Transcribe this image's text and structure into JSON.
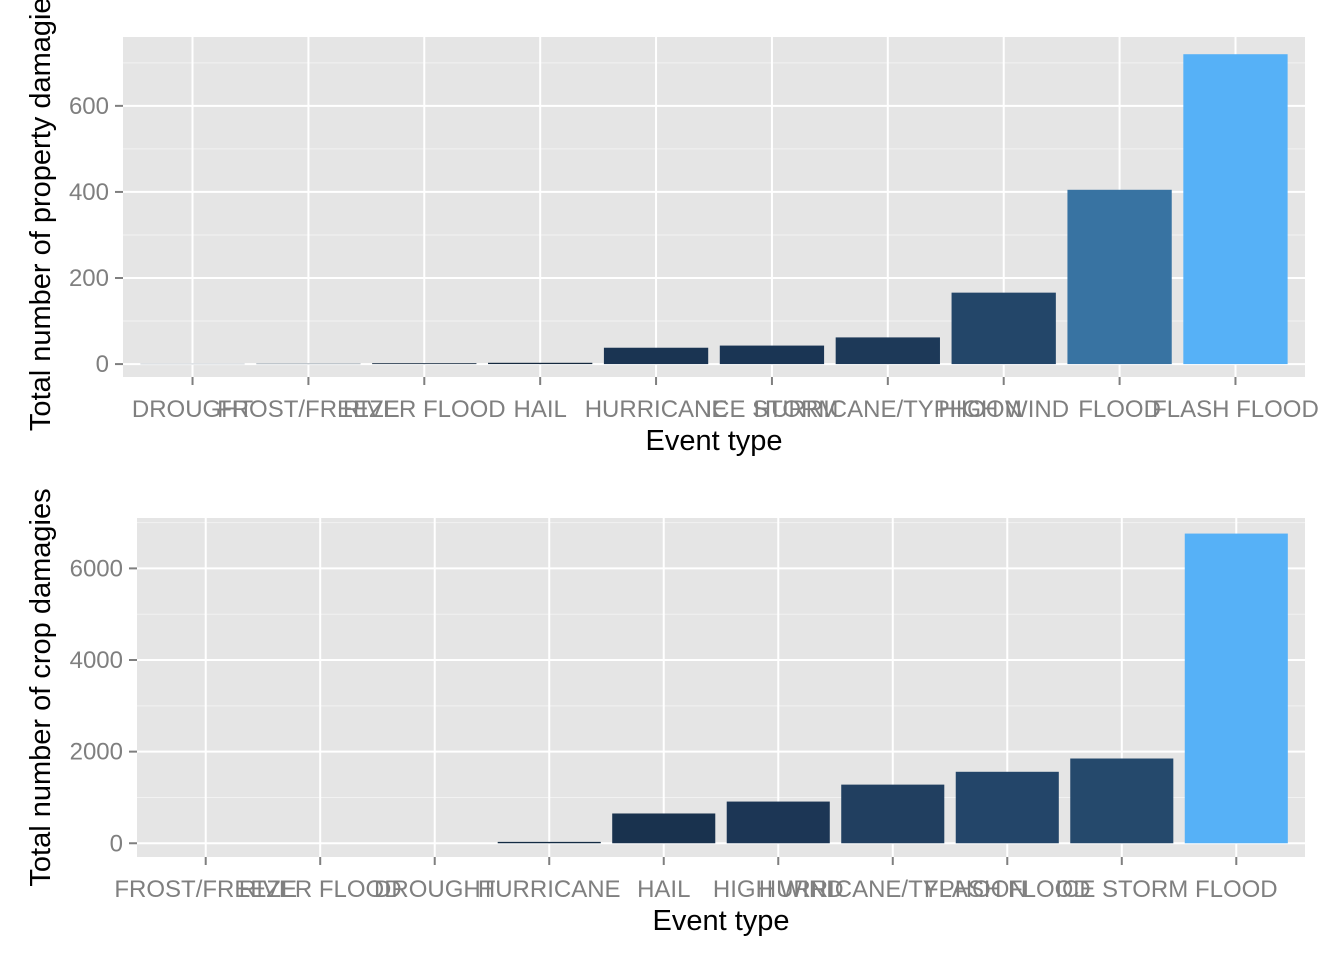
{
  "chart_data": [
    {
      "type": "bar",
      "categories": [
        "DROUGHT",
        "FROST/FREEZE",
        "RIVER FLOOD",
        "HAIL",
        "HURRICANE",
        "ICE STORM",
        "HURRICANE/TYPHOON",
        "HIGH WIND",
        "FLOOD",
        "FLASH FLOOD"
      ],
      "values": [
        0.5,
        0.8,
        2,
        3,
        38,
        43,
        62,
        166,
        405,
        720
      ],
      "colors": [
        "#132b43",
        "#132b43",
        "#14293f",
        "#15293f",
        "#1a3452",
        "#1a3554",
        "#1d3958",
        "#234669",
        "#3873a2",
        "#56b1f7"
      ],
      "xlabel": "Event type",
      "ylabel": "Total number of property damagies",
      "ylim": [
        -30,
        760
      ],
      "yticks": [
        0,
        200,
        400,
        600
      ],
      "grid": true
    },
    {
      "type": "bar",
      "categories": [
        "FROST/FREEZE",
        "RIVER FLOOD",
        "DROUGHT",
        "HURRICANE",
        "HAIL",
        "HIGH WIND",
        "HURRICANE/TYPHOON",
        "FLASH FLOOD",
        "ICE STORM",
        "FLOOD"
      ],
      "values": [
        0,
        0,
        0,
        30,
        650,
        910,
        1280,
        1560,
        1850,
        6760
      ],
      "colors": [
        "#132b43",
        "#132b43",
        "#132b43",
        "#132b43",
        "#19324e",
        "#1c3655",
        "#213f60",
        "#234569",
        "#25496c",
        "#56b1f7"
      ],
      "xlabel": "Event type",
      "ylabel": "Total number of crop damagies",
      "ylim": [
        -300,
        7100
      ],
      "yticks": [
        0,
        2000,
        4000,
        6000
      ],
      "grid": true
    }
  ]
}
